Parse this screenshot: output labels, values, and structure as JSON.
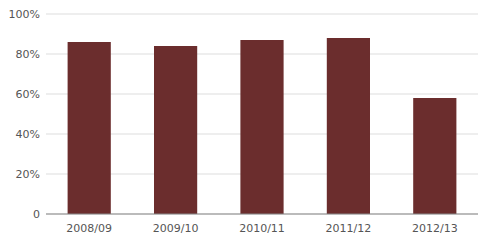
{
  "chart_data": {
    "type": "bar",
    "categories": [
      "2008/09",
      "2009/10",
      "2010/11",
      "2011/12",
      "2012/13"
    ],
    "values": [
      86,
      84,
      87,
      88,
      58
    ],
    "color": "#6B2D2D",
    "ylim": [
      0,
      100
    ],
    "yticks": [
      0,
      {
        "value": 20,
        "label": "20%"
      },
      {
        "value": 40,
        "label": "40%"
      },
      {
        "value": 60,
        "label": "60%"
      },
      {
        "value": 80,
        "label": "80%"
      },
      {
        "value": 100,
        "label": "100%"
      }
    ],
    "grid": true
  }
}
